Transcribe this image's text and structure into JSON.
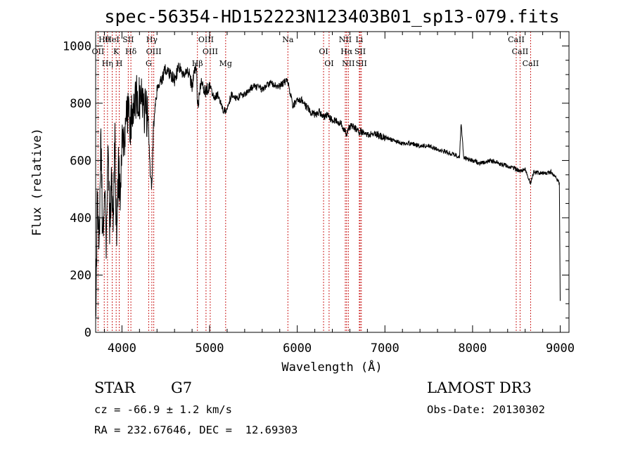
{
  "chart_data": {
    "type": "line",
    "title": "spec-56354-HD152223N123403B01_sp13-079.fits",
    "xlabel": "Wavelength (Å)",
    "ylabel": "Flux (relative)",
    "xlim": [
      3700,
      9100
    ],
    "ylim": [
      0,
      1050
    ],
    "x_ticks": [
      4000,
      5000,
      6000,
      7000,
      8000,
      9000
    ],
    "y_ticks": [
      0,
      200,
      400,
      600,
      800,
      1000
    ],
    "grid": false,
    "series": [
      {
        "name": "spectrum",
        "x": [
          3700,
          3720,
          3740,
          3760,
          3780,
          3800,
          3820,
          3840,
          3860,
          3880,
          3900,
          3920,
          3940,
          3960,
          3980,
          4000,
          4030,
          4060,
          4100,
          4150,
          4200,
          4250,
          4300,
          4320,
          4340,
          4360,
          4400,
          4450,
          4500,
          4550,
          4600,
          4650,
          4700,
          4750,
          4800,
          4850,
          4861,
          4900,
          4950,
          5000,
          5050,
          5100,
          5150,
          5183,
          5250,
          5300,
          5400,
          5500,
          5600,
          5700,
          5800,
          5890,
          5950,
          6000,
          6050,
          6100,
          6150,
          6200,
          6250,
          6300,
          6350,
          6400,
          6450,
          6500,
          6563,
          6600,
          6650,
          6700,
          6750,
          6800,
          6900,
          7000,
          7100,
          7200,
          7300,
          7400,
          7500,
          7600,
          7700,
          7800,
          7850,
          7870,
          7900,
          8000,
          8100,
          8200,
          8300,
          8400,
          8498,
          8542,
          8600,
          8662,
          8700,
          8800,
          8900,
          8950,
          8990,
          9000
        ],
        "values": [
          20,
          480,
          250,
          700,
          300,
          560,
          250,
          610,
          380,
          520,
          420,
          660,
          300,
          570,
          450,
          640,
          700,
          780,
          730,
          820,
          830,
          780,
          760,
          560,
          500,
          720,
          850,
          880,
          920,
          900,
          880,
          930,
          900,
          920,
          860,
          940,
          780,
          870,
          840,
          860,
          820,
          830,
          780,
          770,
          830,
          820,
          830,
          860,
          850,
          870,
          860,
          880,
          790,
          810,
          810,
          790,
          770,
          760,
          770,
          750,
          760,
          740,
          740,
          730,
          690,
          720,
          715,
          700,
          700,
          690,
          690,
          680,
          670,
          660,
          660,
          650,
          650,
          640,
          630,
          620,
          610,
          730,
          610,
          600,
          590,
          600,
          590,
          580,
          570,
          560,
          570,
          520,
          560,
          555,
          560,
          540,
          520,
          110
        ]
      }
    ],
    "annotations": [
      {
        "label": "Hθ",
        "wavelength": 3798
      },
      {
        "label": "OII",
        "wavelength": 3727
      },
      {
        "label": "Hη",
        "wavelength": 3835
      },
      {
        "label": "HeI",
        "wavelength": 3889
      },
      {
        "label": "K",
        "wavelength": 3934
      },
      {
        "label": "H",
        "wavelength": 3969
      },
      {
        "label": "SII",
        "wavelength": 4072
      },
      {
        "label": "Hδ",
        "wavelength": 4102
      },
      {
        "label": "G",
        "wavelength": 4305
      },
      {
        "label": "Hγ",
        "wavelength": 4341
      },
      {
        "label": "OIII",
        "wavelength": 4363
      },
      {
        "label": "Hβ",
        "wavelength": 4861
      },
      {
        "label": "OIII",
        "wavelength": 4959
      },
      {
        "label": "OIII",
        "wavelength": 5007
      },
      {
        "label": "Mg",
        "wavelength": 5183
      },
      {
        "label": "Na",
        "wavelength": 5893
      },
      {
        "label": "OI",
        "wavelength": 6300
      },
      {
        "label": "OI",
        "wavelength": 6363
      },
      {
        "label": "NII",
        "wavelength": 6548
      },
      {
        "label": "Hα",
        "wavelength": 6563
      },
      {
        "label": "NII",
        "wavelength": 6583
      },
      {
        "label": "Li",
        "wavelength": 6708
      },
      {
        "label": "SII",
        "wavelength": 6717
      },
      {
        "label": "SII",
        "wavelength": 6731
      },
      {
        "label": "CaII",
        "wavelength": 8498
      },
      {
        "label": "CaII",
        "wavelength": 8542
      },
      {
        "label": "CaII",
        "wavelength": 8662
      }
    ]
  },
  "info": {
    "object_class": "STAR",
    "subclass": "G7",
    "survey": "LAMOST DR3",
    "redshift": "cz = -66.9 ± 1.2 km/s",
    "obs_date": "Obs-Date: 20130302",
    "coords": "RA = 232.67646, DEC =  12.69303"
  },
  "colors": {
    "line": "#000000",
    "marker": "#cc2222",
    "background": "#ffffff"
  }
}
